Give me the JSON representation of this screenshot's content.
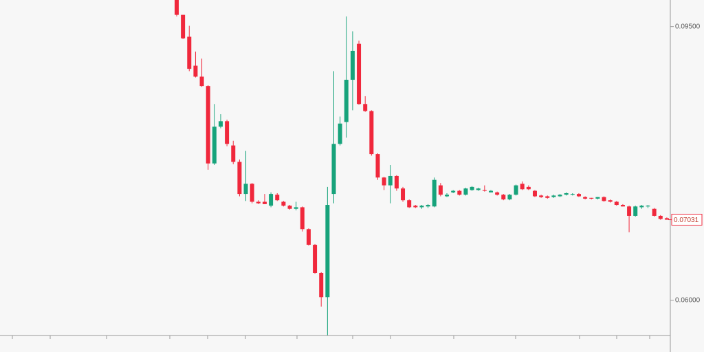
{
  "chart_data": {
    "type": "candlestick",
    "up_color": "#17a37b",
    "down_color": "#f0283c",
    "ylim": [
      0.0555,
      0.0984
    ],
    "yticks": [
      {
        "value": 0.095,
        "label": "0.09500"
      },
      {
        "value": 0.06,
        "label": "0.06000"
      }
    ],
    "last_price": {
      "value": 0.07031,
      "label": "0.07031"
    },
    "categories": [
      null,
      null,
      null,
      null,
      null,
      null,
      null,
      null,
      null,
      null,
      null,
      null,
      null,
      null,
      null,
      null,
      null,
      null,
      null,
      null,
      null,
      null,
      null,
      null,
      null,
      null,
      null,
      null,
      null,
      null,
      null,
      null,
      null,
      null,
      null,
      null,
      null,
      null,
      null,
      null,
      null,
      null,
      null,
      null,
      null,
      null,
      null,
      null,
      null,
      null,
      null,
      null,
      null,
      null,
      null,
      null,
      null,
      null,
      null,
      null,
      null,
      null,
      null,
      null,
      null,
      null,
      null,
      null,
      null,
      null,
      null,
      null,
      null,
      null,
      null,
      null,
      null,
      null,
      null
    ],
    "open": [
      0.0986,
      0.0965,
      0.0937,
      0.09,
      0.0886,
      0.0874,
      0.0775,
      0.0822,
      0.0829,
      0.0798,
      0.0777,
      0.0736,
      0.0749,
      0.0726,
      0.0726,
      0.0721,
      0.0735,
      0.0726,
      0.0721,
      0.0717,
      0.0719,
      0.0691,
      0.0671,
      0.0635,
      0.0604,
      0.0736,
      0.08,
      0.0828,
      0.0882,
      0.0928,
      0.0851,
      0.0842,
      0.0787,
      0.0757,
      0.0747,
      0.0759,
      0.0743,
      0.0728,
      0.0721,
      0.0719,
      0.072,
      0.072,
      0.0747,
      0.0733,
      0.0738,
      0.074,
      0.0735,
      0.0741,
      0.0741,
      0.0741,
      0.0738,
      0.0738,
      0.0735,
      0.0729,
      0.0735,
      0.0749,
      0.0745,
      0.074,
      0.0734,
      0.0733,
      0.0732,
      0.0733,
      0.0735,
      0.0735,
      0.0736,
      0.0732,
      0.0731,
      0.073,
      0.0732,
      0.0728,
      0.0726,
      0.0722,
      0.072,
      0.0708,
      0.0719,
      0.072,
      0.0717,
      0.0708,
      0.0705
    ],
    "high": [
      0.0989,
      0.0965,
      0.0951,
      0.0918,
      0.0909,
      0.0875,
      0.0851,
      0.0838,
      0.0831,
      0.0804,
      0.078,
      0.0791,
      0.075,
      0.0728,
      0.0736,
      0.0738,
      0.0737,
      0.0727,
      0.0722,
      0.0726,
      0.072,
      0.0692,
      0.0672,
      0.0636,
      0.0745,
      0.0893,
      0.0835,
      0.0963,
      0.0944,
      0.0932,
      0.0861,
      0.0843,
      0.0788,
      0.0758,
      0.0773,
      0.076,
      0.0745,
      0.0729,
      0.0722,
      0.0722,
      0.0723,
      0.0757,
      0.075,
      0.0737,
      0.0741,
      0.0741,
      0.0744,
      0.0746,
      0.0744,
      0.0747,
      0.0741,
      0.0739,
      0.0736,
      0.0736,
      0.0748,
      0.0752,
      0.0747,
      0.0741,
      0.0735,
      0.0734,
      0.0735,
      0.0736,
      0.0738,
      0.0737,
      0.0737,
      0.0733,
      0.0731,
      0.0732,
      0.0733,
      0.0729,
      0.0727,
      0.0723,
      0.0721,
      0.0721,
      0.0722,
      0.0722,
      0.0718,
      0.0709,
      0.0706
    ],
    "low": [
      0.0963,
      0.0934,
      0.0893,
      0.0885,
      0.0873,
      0.0767,
      0.0773,
      0.082,
      0.0797,
      0.0774,
      0.0733,
      0.0727,
      0.0724,
      0.0723,
      0.0723,
      0.0719,
      0.0727,
      0.072,
      0.0716,
      0.0715,
      0.0688,
      0.067,
      0.0634,
      0.0592,
      0.0555,
      0.0724,
      0.0798,
      0.0808,
      0.0843,
      0.085,
      0.0841,
      0.0785,
      0.0754,
      0.0741,
      0.0724,
      0.074,
      0.0726,
      0.0718,
      0.0718,
      0.0717,
      0.0718,
      0.0719,
      0.0733,
      0.0732,
      0.0737,
      0.0734,
      0.0734,
      0.074,
      0.074,
      0.0739,
      0.0738,
      0.0734,
      0.0728,
      0.0728,
      0.0734,
      0.0741,
      0.0741,
      0.0732,
      0.0731,
      0.073,
      0.0731,
      0.0732,
      0.0734,
      0.0734,
      0.0732,
      0.0729,
      0.0729,
      0.0729,
      0.0726,
      0.0725,
      0.0721,
      0.072,
      0.0687,
      0.0707,
      0.0717,
      0.0718,
      0.0707,
      0.0703,
      0.0703
    ],
    "close": [
      0.0965,
      0.0935,
      0.0896,
      0.0886,
      0.0874,
      0.0775,
      0.0822,
      0.0829,
      0.08,
      0.0777,
      0.0736,
      0.0749,
      0.0726,
      0.0724,
      0.0723,
      0.0736,
      0.0728,
      0.0721,
      0.0717,
      0.0719,
      0.0691,
      0.0671,
      0.0635,
      0.0604,
      0.0722,
      0.08,
      0.0826,
      0.0882,
      0.0919,
      0.0851,
      0.0842,
      0.0787,
      0.0757,
      0.0747,
      0.0759,
      0.0743,
      0.0728,
      0.0719,
      0.0719,
      0.0721,
      0.0722,
      0.0754,
      0.0735,
      0.0735,
      0.074,
      0.0735,
      0.0743,
      0.0745,
      0.0743,
      0.074,
      0.074,
      0.0735,
      0.0729,
      0.0735,
      0.0747,
      0.0742,
      0.0742,
      0.0733,
      0.0732,
      0.0731,
      0.0734,
      0.0735,
      0.0737,
      0.0736,
      0.0733,
      0.073,
      0.073,
      0.0732,
      0.0727,
      0.0726,
      0.0722,
      0.072,
      0.0708,
      0.072,
      0.0721,
      0.0721,
      0.0708,
      0.0704,
      0.07031
    ]
  }
}
